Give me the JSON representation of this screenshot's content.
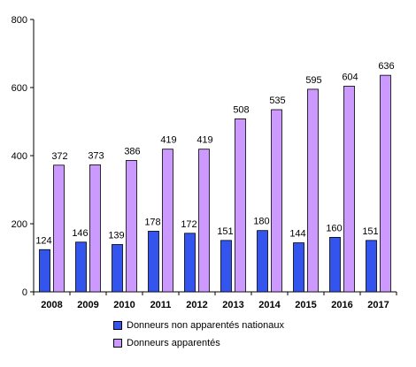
{
  "chart_data": {
    "type": "bar",
    "categories": [
      "2008",
      "2009",
      "2010",
      "2011",
      "2012",
      "2013",
      "2014",
      "2015",
      "2016",
      "2017"
    ],
    "series": [
      {
        "name": "Donneurs non apparentés nationaux",
        "values": [
          124,
          146,
          139,
          178,
          172,
          151,
          180,
          144,
          160,
          151
        ],
        "color": "#3355ee"
      },
      {
        "name": "Donneurs apparentés",
        "values": [
          372,
          373,
          386,
          419,
          419,
          508,
          535,
          595,
          604,
          636
        ],
        "color": "#cc99ff"
      }
    ],
    "ylim": [
      0,
      800
    ],
    "yticks": [
      0,
      200,
      400,
      600,
      800
    ],
    "grid": false,
    "legend_position": "bottom"
  }
}
